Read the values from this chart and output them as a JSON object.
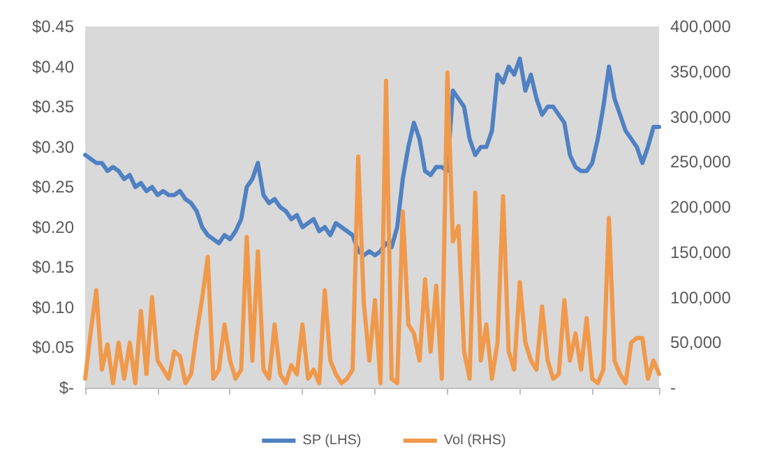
{
  "chart_data": {
    "type": "line",
    "categories": [
      null,
      null,
      null,
      null,
      null,
      null,
      null,
      null,
      null,
      null,
      null,
      null,
      null,
      null,
      null,
      null,
      null,
      null,
      null,
      null,
      null,
      null,
      null,
      null,
      null,
      null,
      null,
      null,
      null,
      null,
      null,
      null,
      null,
      null,
      null,
      null,
      null,
      null,
      null,
      null,
      null,
      null,
      null,
      null,
      null,
      null,
      null,
      null,
      null,
      null,
      null,
      null,
      null,
      null,
      null,
      null,
      null,
      null,
      null,
      null,
      null,
      null,
      null,
      null,
      null,
      null,
      null,
      null,
      null,
      null,
      null,
      null,
      null,
      null,
      null,
      null,
      null,
      null,
      null,
      null,
      null,
      null,
      null,
      null,
      null,
      null,
      null,
      null,
      null,
      null,
      null,
      null,
      null,
      null,
      null,
      null,
      null,
      null,
      null,
      null,
      null,
      null,
      null,
      null
    ],
    "series": [
      {
        "name": "SP (LHS)",
        "color": "#5081c3",
        "values": [
          0.29,
          0.285,
          0.28,
          0.28,
          0.27,
          0.275,
          0.27,
          0.26,
          0.265,
          0.25,
          0.255,
          0.245,
          0.25,
          0.24,
          0.245,
          0.24,
          0.24,
          0.245,
          0.235,
          0.23,
          0.22,
          0.2,
          0.19,
          0.185,
          0.18,
          0.19,
          0.185,
          0.195,
          0.21,
          0.25,
          0.26,
          0.28,
          0.24,
          0.23,
          0.235,
          0.225,
          0.22,
          0.21,
          0.215,
          0.2,
          0.205,
          0.21,
          0.195,
          0.2,
          0.19,
          0.205,
          0.2,
          0.195,
          0.19,
          0.17,
          0.165,
          0.17,
          0.165,
          0.17,
          0.18,
          0.175,
          0.2,
          0.26,
          0.3,
          0.33,
          0.31,
          0.27,
          0.265,
          0.275,
          0.275,
          0.27,
          0.37,
          0.36,
          0.35,
          0.31,
          0.29,
          0.3,
          0.3,
          0.32,
          0.39,
          0.38,
          0.4,
          0.39,
          0.41,
          0.37,
          0.39,
          0.36,
          0.34,
          0.35,
          0.35,
          0.34,
          0.33,
          0.29,
          0.275,
          0.27,
          0.27,
          0.28,
          0.31,
          0.35,
          0.4,
          0.36,
          0.34,
          0.32,
          0.31,
          0.3,
          0.28,
          0.3,
          0.325,
          0.325
        ]
      },
      {
        "name": "Vol (RHS)",
        "color": "#f0994b",
        "axis": "y2",
        "values": [
          10000,
          62000,
          108000,
          20000,
          48000,
          5000,
          50000,
          10000,
          50000,
          5000,
          85000,
          15000,
          100000,
          30000,
          20000,
          10000,
          40000,
          35000,
          5000,
          15000,
          60000,
          99000,
          145000,
          10000,
          20000,
          70000,
          30000,
          10000,
          20000,
          167000,
          30000,
          151000,
          20000,
          10000,
          70000,
          15000,
          5000,
          25000,
          15000,
          70000,
          10000,
          20000,
          5000,
          108000,
          30000,
          15000,
          5000,
          10000,
          20000,
          256000,
          94000,
          30000,
          97000,
          5000,
          340000,
          10000,
          5000,
          195000,
          70000,
          60000,
          30000,
          120000,
          40000,
          113000,
          10000,
          349000,
          162000,
          179000,
          40000,
          10000,
          216000,
          30000,
          70000,
          10000,
          50000,
          212000,
          40000,
          20000,
          117000,
          50000,
          30000,
          20000,
          90000,
          30000,
          10000,
          15000,
          97000,
          30000,
          60000,
          20000,
          77000,
          10000,
          5000,
          20000,
          188000,
          30000,
          15000,
          5000,
          50000,
          55000,
          55000,
          10000,
          30000,
          15000
        ]
      }
    ],
    "ylim": [
      0,
      0.45
    ],
    "yticks": [
      {
        "value": 0,
        "label": "$-"
      },
      {
        "value": 0.05,
        "label": "$0.05"
      },
      {
        "value": 0.1,
        "label": "$0.10"
      },
      {
        "value": 0.15,
        "label": "$0.15"
      },
      {
        "value": 0.2,
        "label": "$0.20"
      },
      {
        "value": 0.25,
        "label": "$0.25"
      },
      {
        "value": 0.3,
        "label": "$0.30"
      },
      {
        "value": 0.35,
        "label": "$0.35"
      },
      {
        "value": 0.4,
        "label": "$0.40"
      },
      {
        "value": 0.45,
        "label": "$0.45"
      }
    ],
    "y2lim": [
      0,
      400000
    ],
    "y2ticks": [
      {
        "value": 0,
        "label": "-"
      },
      {
        "value": 50000,
        "label": "50,000"
      },
      {
        "value": 100000,
        "label": "100,000"
      },
      {
        "value": 150000,
        "label": "150,000"
      },
      {
        "value": 200000,
        "label": "200,000"
      },
      {
        "value": 250000,
        "label": "250,000"
      },
      {
        "value": 300000,
        "label": "300,000"
      },
      {
        "value": 350000,
        "label": "350,000"
      },
      {
        "value": 400000,
        "label": "400,000"
      }
    ],
    "tick_labels": "y",
    "legend": "bottom",
    "line_style": "solid"
  }
}
